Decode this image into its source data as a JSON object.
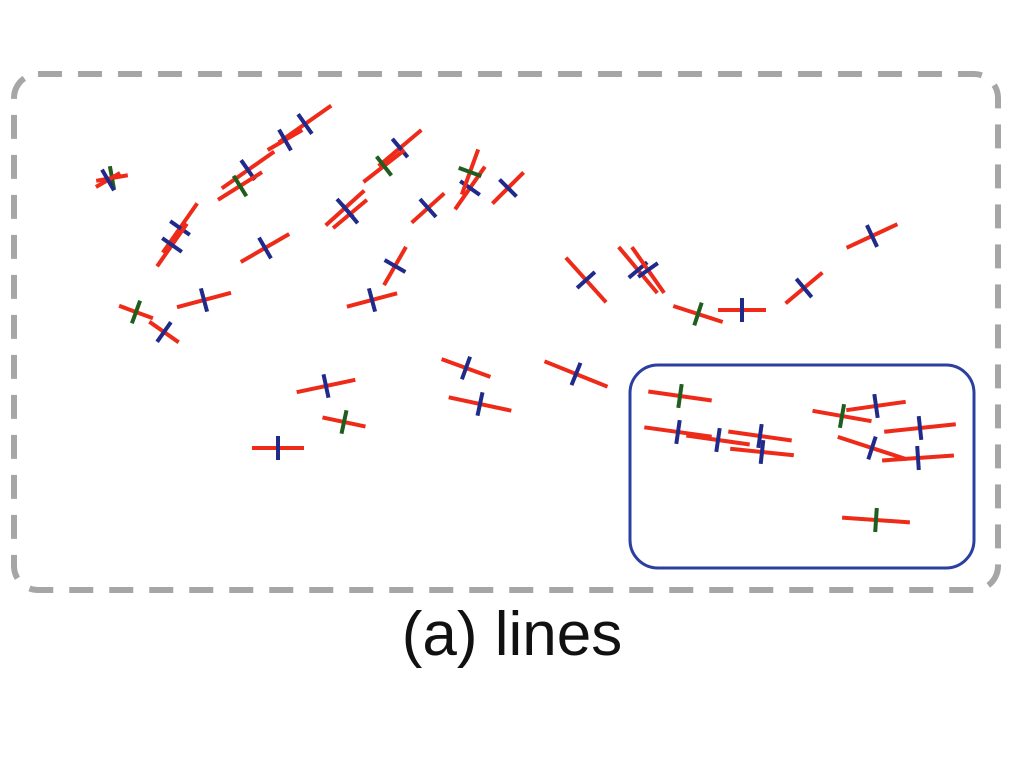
{
  "caption": "(a) lines",
  "colors": {
    "outer_border": "#a6a6a6",
    "inner_border": "#2b3fa0",
    "segment": "#ee2a18",
    "normal_blue": "#202a8a",
    "normal_green": "#1f5e1f"
  },
  "regions": [
    {
      "name": "outer-dashed-frame",
      "style": "dashed"
    },
    {
      "name": "inner-highlight-box",
      "style": "solid"
    }
  ],
  "glyph_count": 58
}
